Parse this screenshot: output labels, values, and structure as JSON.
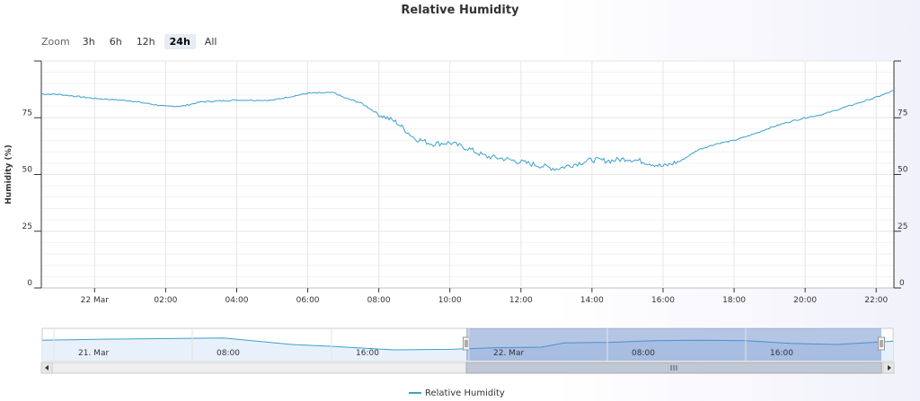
{
  "title": "Relative Humidity",
  "zoom": {
    "label": "Zoom",
    "buttons": [
      {
        "label": "3h",
        "active": false
      },
      {
        "label": "6h",
        "active": false
      },
      {
        "label": "12h",
        "active": false
      },
      {
        "label": "24h",
        "active": true
      },
      {
        "label": "All",
        "active": false
      }
    ]
  },
  "colors": {
    "series": "#3ba1cc",
    "navigator_fill": "#5a7ec4",
    "left_tick_0": "#0000cc",
    "tick_red": "#cc0000",
    "grid": "#e6e6e6"
  },
  "navigator": {
    "labels": [
      "21. Mar",
      "08:00",
      "16:00",
      "22. Mar",
      "08:00",
      "16:00"
    ],
    "selected_from": "2013-03-21T22:30",
    "selected_to": "2013-03-22T22:30"
  },
  "legend": {
    "label": "Relative Humidity"
  },
  "chart_data": {
    "type": "line",
    "title": "Relative Humidity",
    "ylabel": "Humidity (%)",
    "xlabel": "",
    "ylim": [
      0,
      100
    ],
    "x_range": [
      "2013-03-21T22:30",
      "2013-03-22T22:30"
    ],
    "y_ticks_left": [
      0,
      25,
      50,
      75
    ],
    "y_ticks_right": [
      25,
      50,
      75
    ],
    "x_tick_labels": [
      "22 Mar",
      "02:00",
      "04:00",
      "06:00",
      "08:00",
      "10:00",
      "12:00",
      "14:00",
      "16:00",
      "18:00",
      "20:00",
      "22:00"
    ],
    "series": [
      {
        "name": "Relative Humidity",
        "x": [
          "2013-03-21T22:30",
          "2013-03-21T23:00",
          "2013-03-22T00:00",
          "2013-03-22T01:00",
          "2013-03-22T02:00",
          "2013-03-22T02:30",
          "2013-03-22T03:00",
          "2013-03-22T04:00",
          "2013-03-22T05:00",
          "2013-03-22T06:00",
          "2013-03-22T06:45",
          "2013-03-22T07:00",
          "2013-03-22T07:30",
          "2013-03-22T08:00",
          "2013-03-22T08:30",
          "2013-03-22T09:00",
          "2013-03-22T09:30",
          "2013-03-22T10:00",
          "2013-03-22T10:30",
          "2013-03-22T11:00",
          "2013-03-22T11:30",
          "2013-03-22T12:00",
          "2013-03-22T12:30",
          "2013-03-22T13:00",
          "2013-03-22T13:30",
          "2013-03-22T14:00",
          "2013-03-22T14:30",
          "2013-03-22T15:00",
          "2013-03-22T15:30",
          "2013-03-22T16:00",
          "2013-03-22T16:30",
          "2013-03-22T17:00",
          "2013-03-22T17:30",
          "2013-03-22T18:00",
          "2013-03-22T18:30",
          "2013-03-22T19:00",
          "2013-03-22T19:30",
          "2013-03-22T20:00",
          "2013-03-22T20:30",
          "2013-03-22T21:00",
          "2013-03-22T21:30",
          "2013-03-22T22:00",
          "2013-03-22T22:30"
        ],
        "y": [
          85.5,
          85.3,
          83.5,
          82.5,
          80.0,
          80.2,
          82.0,
          82.8,
          82.7,
          85.8,
          86.0,
          84.0,
          81.5,
          76.5,
          73.0,
          66.0,
          63.5,
          64.0,
          61.5,
          58.0,
          57.0,
          55.5,
          54.0,
          52.5,
          54.5,
          56.5,
          56.0,
          57.0,
          55.5,
          53.5,
          56.0,
          61.0,
          63.5,
          65.0,
          67.5,
          70.5,
          73.0,
          75.0,
          76.5,
          79.0,
          81.5,
          84.0,
          87.0
        ]
      }
    ]
  }
}
